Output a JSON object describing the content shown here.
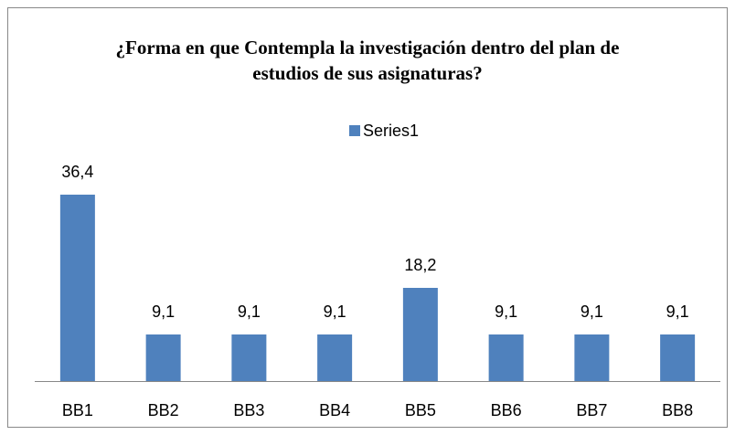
{
  "chart_data": {
    "type": "bar",
    "title": "¿Forma en que Contempla la investigación dentro del plan de estudios de sus asignaturas?",
    "categories": [
      "BB1",
      "BB2",
      "BB3",
      "BB4",
      "BB5",
      "BB6",
      "BB7",
      "BB8"
    ],
    "series": [
      {
        "name": "Series1",
        "color": "#4f81bd",
        "values": [
          36.4,
          9.1,
          9.1,
          9.1,
          18.2,
          9.1,
          9.1,
          9.1
        ],
        "value_labels": [
          "36,4",
          "9,1",
          "9,1",
          "9,1",
          "18,2",
          "9,1",
          "9,1",
          "9,1"
        ]
      }
    ],
    "legend": "top"
  }
}
